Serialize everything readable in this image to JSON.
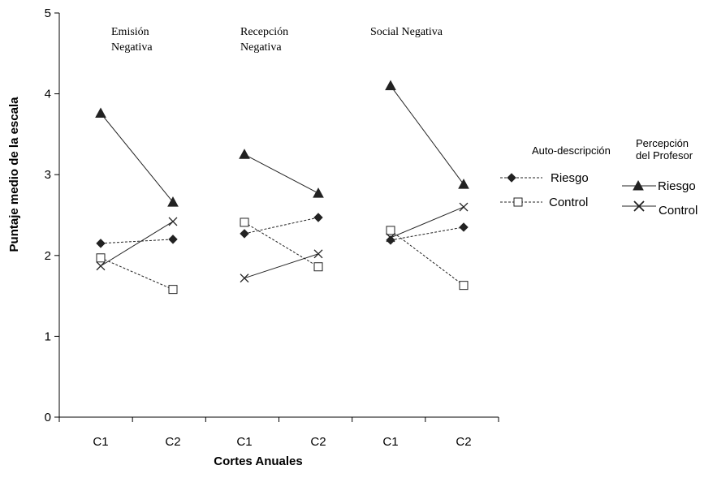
{
  "chart_data": {
    "type": "line",
    "title": "",
    "xlabel": "Cortes Anuales",
    "ylabel": "Puntaje medio de la escala",
    "ylim": [
      0,
      5
    ],
    "yticks": [
      "0",
      "1",
      "2",
      "3",
      "4",
      "5"
    ],
    "grid": false,
    "groups": [
      {
        "label": "Emisión\nNegativa",
        "categories": [
          "C1",
          "C2"
        ]
      },
      {
        "label": "Recepción\nNegativa",
        "categories": [
          "C1",
          "C2"
        ]
      },
      {
        "label": "Social Negativa",
        "categories": [
          "C1",
          "C2"
        ]
      }
    ],
    "legend": {
      "self_title": "Auto-descripción",
      "teacher_title": "Percepción\ndel Profesor",
      "self_riesgo": "Riesgo",
      "self_control": "Control",
      "teacher_riesgo": "Riesgo",
      "teacher_control": "Control"
    },
    "series": [
      {
        "key": "self_riesgo",
        "marker": "diamond",
        "line": "dashed",
        "values": [
          [
            2.15,
            2.2
          ],
          [
            2.27,
            2.47
          ],
          [
            2.19,
            2.35
          ]
        ]
      },
      {
        "key": "self_control",
        "marker": "square",
        "line": "dashed",
        "values": [
          [
            1.97,
            1.58
          ],
          [
            2.41,
            1.86
          ],
          [
            2.31,
            1.63
          ]
        ]
      },
      {
        "key": "teacher_riesgo",
        "marker": "triangle",
        "line": "solid",
        "values": [
          [
            3.76,
            2.66
          ],
          [
            3.25,
            2.77
          ],
          [
            4.1,
            2.88
          ]
        ]
      },
      {
        "key": "teacher_control",
        "marker": "x",
        "line": "solid",
        "values": [
          [
            1.87,
            2.42
          ],
          [
            1.72,
            2.02
          ],
          [
            2.22,
            2.6
          ]
        ]
      }
    ]
  }
}
